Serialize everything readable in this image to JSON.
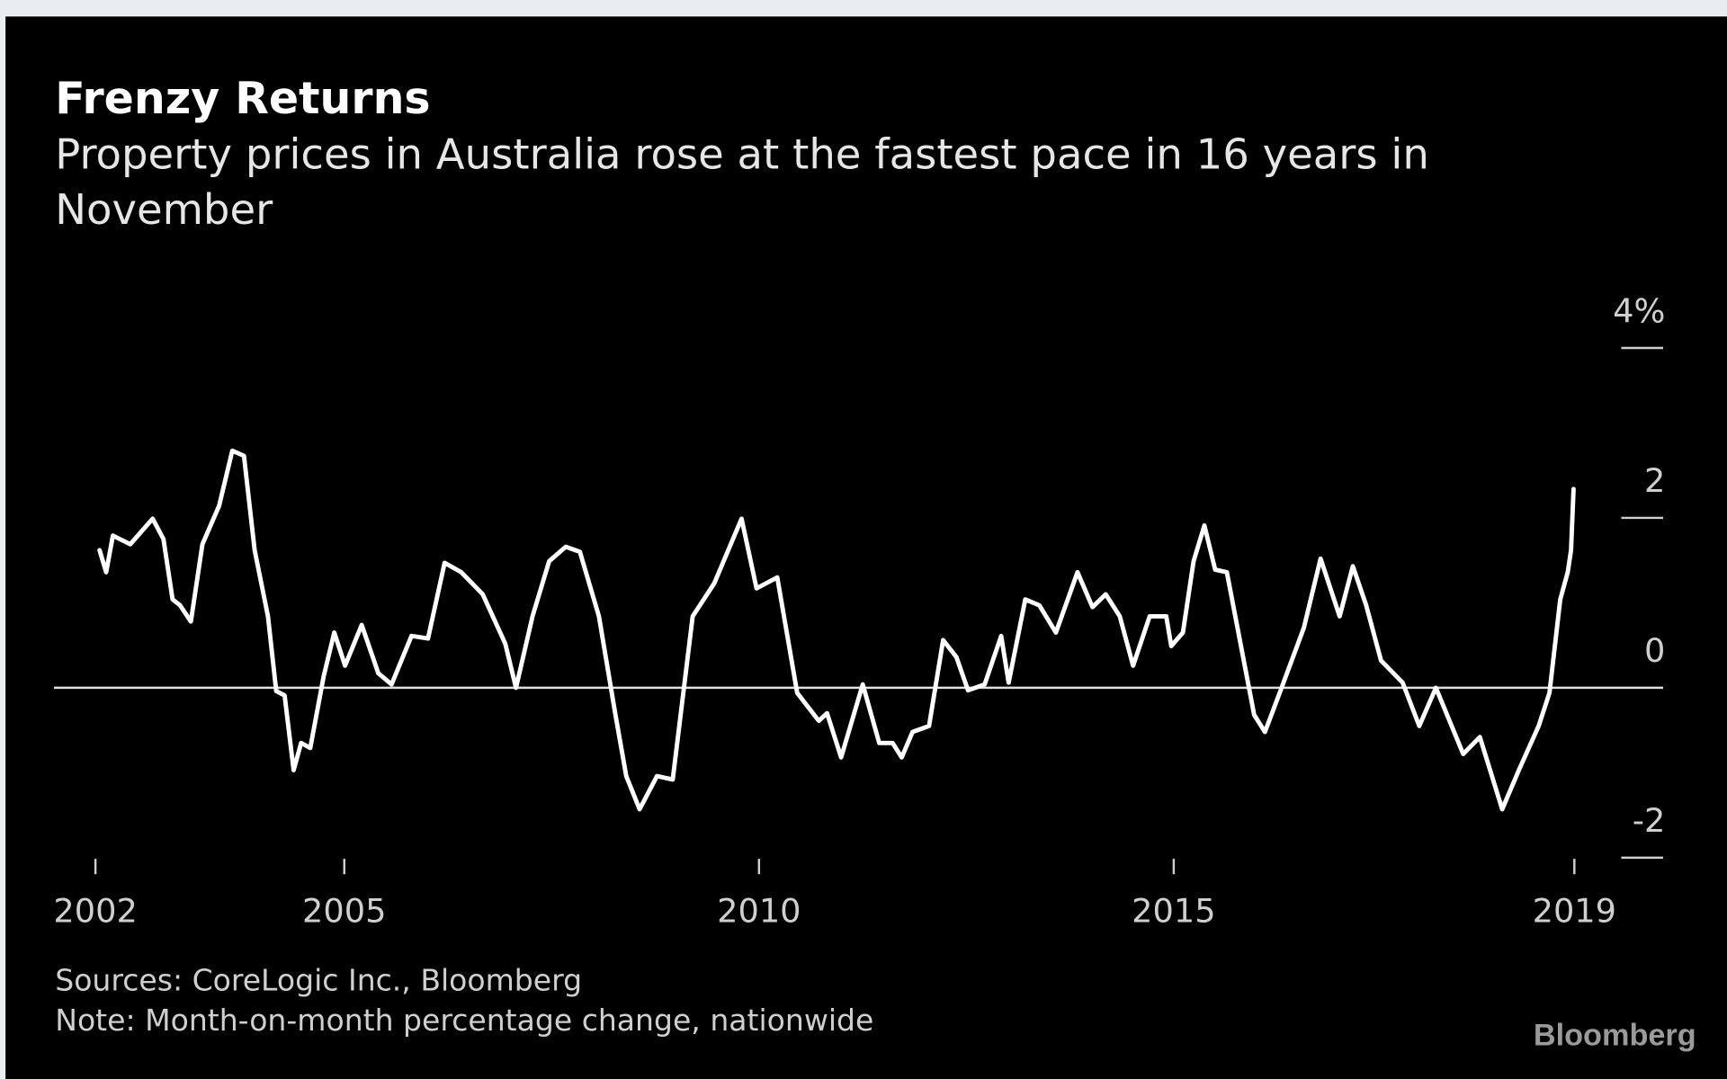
{
  "chart_data": {
    "type": "line",
    "title": "Frenzy Returns",
    "subtitle": [
      "Property prices in Australia rose at the fastest pace in 16 years in",
      "November"
    ],
    "source": "Sources: CoreLogic Inc., Bloomberg",
    "note": "Note: Month-on-month percentage change, nationwide",
    "logo": "Bloomberg",
    "color": "#ffffff",
    "x": [
      2002.05,
      2002.13,
      2002.21,
      2002.42,
      2002.69,
      2002.82,
      2002.93,
      2003.02,
      2003.15,
      2003.29,
      2003.49,
      2003.65,
      2003.79,
      2003.92,
      2004.08,
      2004.18,
      2004.28,
      2004.39,
      2004.48,
      2004.59,
      2004.75,
      2004.88,
      2005.01,
      2005.21,
      2005.41,
      2005.57,
      2005.81,
      2006.01,
      2006.21,
      2006.41,
      2006.67,
      2006.94,
      2007.07,
      2007.27,
      2007.47,
      2007.67,
      2007.84,
      2008.07,
      2008.27,
      2008.4,
      2008.56,
      2008.77,
      2008.96,
      2009.2,
      2009.46,
      2009.79,
      2009.97,
      2010.22,
      2010.46,
      2010.72,
      2010.82,
      2010.99,
      2011.25,
      2011.45,
      2011.61,
      2011.72,
      2011.85,
      2012.05,
      2012.22,
      2012.38,
      2012.52,
      2012.72,
      2012.92,
      2013.01,
      2013.21,
      2013.38,
      2013.58,
      2013.84,
      2014.02,
      2014.18,
      2014.35,
      2014.51,
      2014.71,
      2014.91,
      2014.97,
      2015.11,
      2015.24,
      2015.37,
      2015.5,
      2015.64,
      2015.97,
      2016.1,
      2016.3,
      2016.57,
      2016.77,
      2017.0,
      2017.16,
      2017.32,
      2017.5,
      2017.76,
      2017.96,
      2018.16,
      2018.49,
      2018.69,
      2018.96,
      2019.16,
      2019.4,
      2019.53,
      2019.66,
      2019.75,
      2019.79,
      2019.82
    ],
    "values": [
      1.62,
      1.36,
      1.79,
      1.69,
      1.99,
      1.75,
      1.04,
      0.97,
      0.78,
      1.69,
      2.14,
      2.79,
      2.73,
      1.62,
      0.84,
      -0.04,
      -0.09,
      -0.97,
      -0.65,
      -0.71,
      0.13,
      0.65,
      0.26,
      0.74,
      0.17,
      0.04,
      0.61,
      0.58,
      1.47,
      1.36,
      1.1,
      0.52,
      0.0,
      0.84,
      1.49,
      1.66,
      1.6,
      0.84,
      -0.32,
      -1.04,
      -1.43,
      -1.04,
      -1.08,
      0.84,
      1.23,
      1.99,
      1.17,
      1.3,
      -0.06,
      -0.39,
      -0.3,
      -0.82,
      0.04,
      -0.65,
      -0.65,
      -0.82,
      -0.52,
      -0.45,
      0.56,
      0.36,
      -0.03,
      0.04,
      0.61,
      0.06,
      1.04,
      0.97,
      0.65,
      1.36,
      0.95,
      1.1,
      0.84,
      0.26,
      0.84,
      0.84,
      0.49,
      0.65,
      1.49,
      1.91,
      1.39,
      1.36,
      -0.32,
      -0.52,
      0.0,
      0.71,
      1.52,
      0.84,
      1.43,
      0.97,
      0.32,
      0.06,
      -0.45,
      0.0,
      -0.78,
      -0.58,
      -1.43,
      -0.97,
      -0.45,
      -0.06,
      1.04,
      1.36,
      1.62,
      2.34
    ],
    "xlim": [
      2001.5,
      2020.9
    ],
    "xticks": [
      2002,
      2005,
      2010,
      2015,
      {
        "value": 2019.83,
        "label": "2019"
      }
    ],
    "ylim": [
      -2.2,
      4.2
    ],
    "yticks": [
      {
        "value": 4,
        "label": "4%"
      },
      2,
      0,
      -2
    ]
  }
}
